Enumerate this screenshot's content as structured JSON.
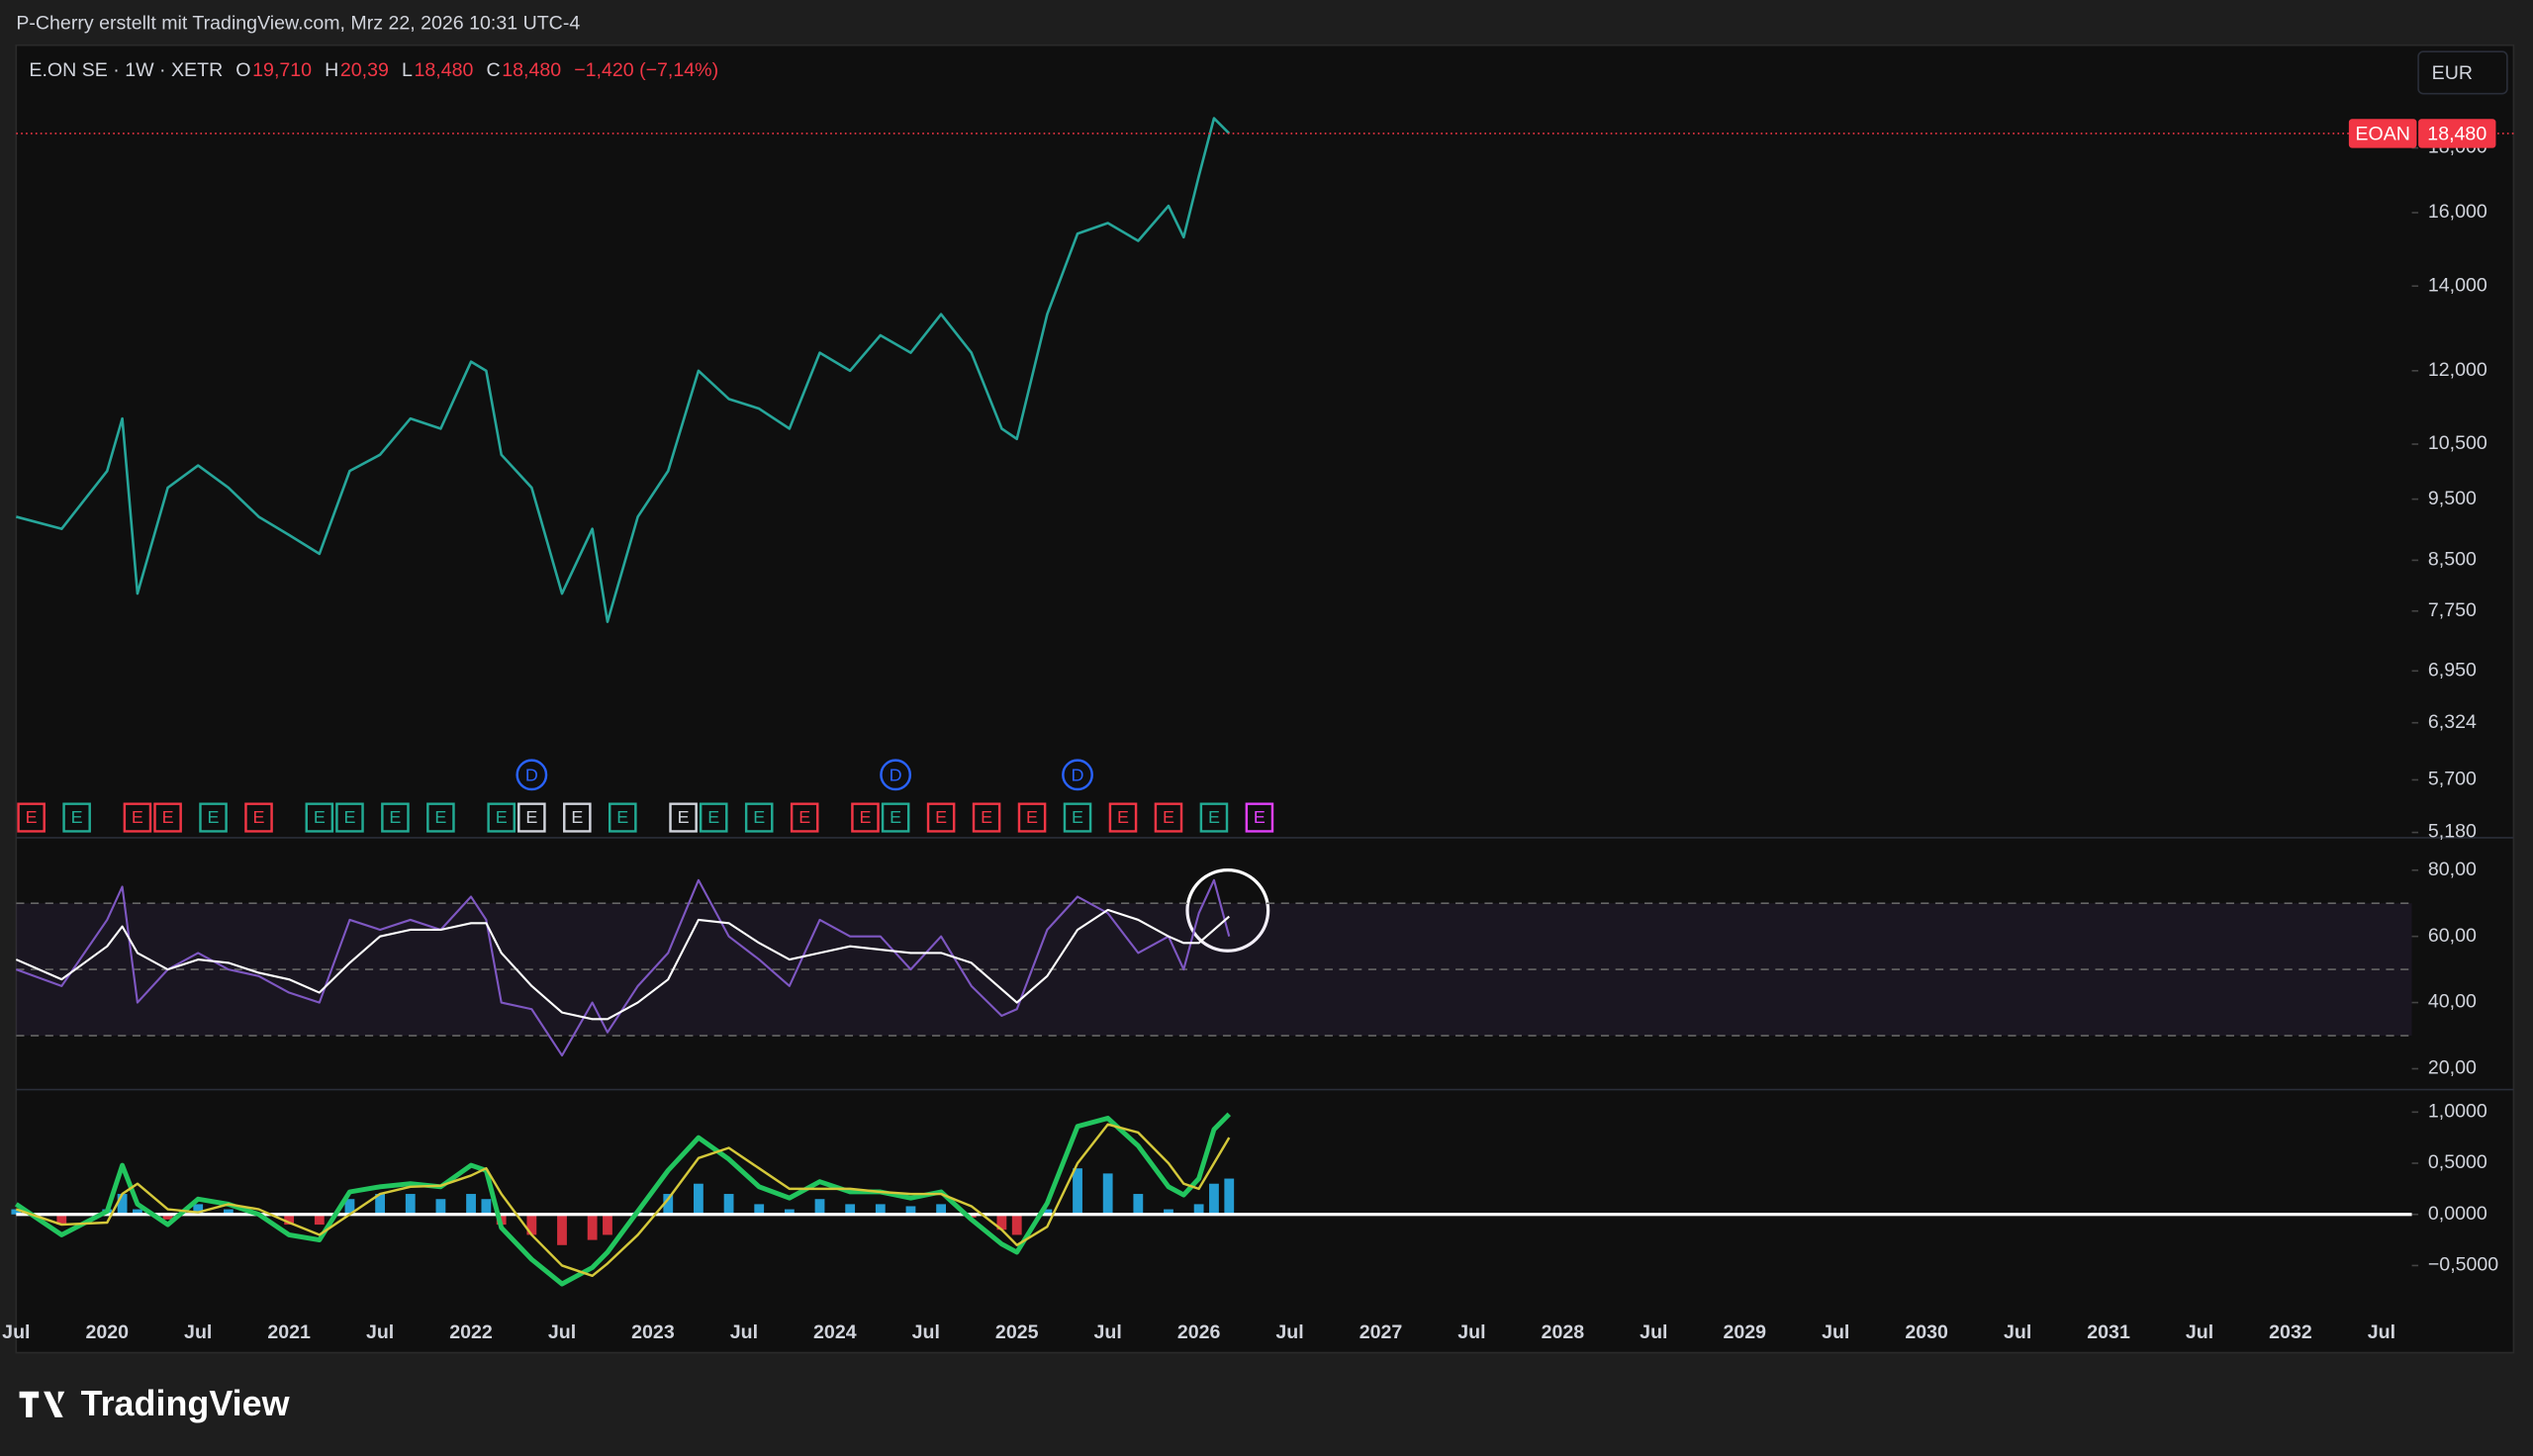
{
  "header": {
    "text": "P-Cherry erstellt mit TradingView.com, Mrz 22, 2026 10:31 UTC-4"
  },
  "footer": {
    "brand": "TradingView"
  },
  "chart_data": [
    {
      "type": "line",
      "title": "E.ON SE · 1W · XETR",
      "legend_items": [
        {
          "key": "O",
          "value": "19,710"
        },
        {
          "key": "H",
          "value": "20,39"
        },
        {
          "key": "L",
          "value": "18,480"
        },
        {
          "key": "C",
          "value": "18,480"
        }
      ],
      "change": "−1,420 (−7,14%)",
      "currency": "EUR",
      "log_scale": true,
      "grid": false,
      "xlim": [
        "2019-07",
        "2032-09"
      ],
      "x": [
        "2019-07",
        "2019-10",
        "2020-01",
        "2020-02",
        "2020-03",
        "2020-05",
        "2020-07",
        "2020-09",
        "2020-11",
        "2021-01",
        "2021-03",
        "2021-05",
        "2021-07",
        "2021-09",
        "2021-11",
        "2022-01",
        "2022-02",
        "2022-03",
        "2022-05",
        "2022-07",
        "2022-09",
        "2022-10",
        "2022-12",
        "2023-02",
        "2023-04",
        "2023-06",
        "2023-08",
        "2023-10",
        "2023-12",
        "2024-02",
        "2024-04",
        "2024-06",
        "2024-08",
        "2024-10",
        "2024-12",
        "2025-01",
        "2025-03",
        "2025-05",
        "2025-07",
        "2025-09",
        "2025-11",
        "2025-12",
        "2026-01",
        "2026-02",
        "2026-03"
      ],
      "values": [
        9.2,
        9.0,
        10.0,
        11.0,
        8.0,
        9.7,
        10.1,
        9.7,
        9.2,
        8.9,
        8.6,
        10.0,
        10.3,
        11.0,
        10.8,
        12.2,
        12.0,
        10.3,
        9.7,
        8.0,
        9.0,
        7.6,
        9.2,
        10.0,
        12.0,
        11.4,
        11.2,
        10.8,
        12.4,
        12.0,
        12.8,
        12.4,
        13.3,
        12.4,
        10.8,
        10.6,
        13.3,
        15.4,
        15.7,
        15.2,
        16.2,
        15.3,
        17.1,
        19.0,
        18.48
      ],
      "color": "#26a69a",
      "ylim": [
        5.13,
        21.7
      ],
      "yticks": [
        {
          "value": 5.18,
          "label": "5,180"
        },
        {
          "value": 5.7,
          "label": "5,700"
        },
        {
          "value": 6.324,
          "label": "6,324"
        },
        {
          "value": 6.95,
          "label": "6,950"
        },
        {
          "value": 7.75,
          "label": "7,750"
        },
        {
          "value": 8.5,
          "label": "8,500"
        },
        {
          "value": 9.5,
          "label": "9,500"
        },
        {
          "value": 10.5,
          "label": "10,500"
        },
        {
          "value": 12,
          "label": "12,000"
        },
        {
          "value": 14,
          "label": "14,000"
        },
        {
          "value": 16,
          "label": "16,000"
        },
        {
          "value": 18,
          "label": "18,000"
        }
      ],
      "last_price": {
        "value": 18.48,
        "label": "18,480",
        "symbol": "EOAN",
        "color": "#f23645"
      },
      "events": [
        {
          "x": "2019-08",
          "label": "E",
          "color": "#f23645"
        },
        {
          "x": "2019-11",
          "label": "E",
          "color": "#22ab94"
        },
        {
          "x": "2020-03",
          "label": "E",
          "color": "#f23645"
        },
        {
          "x": "2020-05",
          "label": "E",
          "color": "#f23645"
        },
        {
          "x": "2020-08",
          "label": "E",
          "color": "#22ab94"
        },
        {
          "x": "2020-11",
          "label": "E",
          "color": "#f23645"
        },
        {
          "x": "2021-03",
          "label": "E",
          "color": "#22ab94"
        },
        {
          "x": "2021-05",
          "label": "E",
          "color": "#22ab94"
        },
        {
          "x": "2021-08",
          "label": "E",
          "color": "#22ab94"
        },
        {
          "x": "2021-11",
          "label": "E",
          "color": "#22ab94"
        },
        {
          "x": "2022-03",
          "label": "E",
          "color": "#22ab94"
        },
        {
          "x": "2022-05",
          "label": "E",
          "color": "#d1d4dc"
        },
        {
          "x": "2022-08",
          "label": "E",
          "color": "#d1d4dc"
        },
        {
          "x": "2022-11",
          "label": "E",
          "color": "#22ab94"
        },
        {
          "x": "2023-03",
          "label": "E",
          "color": "#d1d4dc"
        },
        {
          "x": "2023-05",
          "label": "E",
          "color": "#22ab94"
        },
        {
          "x": "2023-08",
          "label": "E",
          "color": "#22ab94"
        },
        {
          "x": "2023-11",
          "label": "E",
          "color": "#f23645"
        },
        {
          "x": "2024-03",
          "label": "E",
          "color": "#f23645"
        },
        {
          "x": "2024-05",
          "label": "E",
          "color": "#22ab94"
        },
        {
          "x": "2024-08",
          "label": "E",
          "color": "#f23645"
        },
        {
          "x": "2024-11",
          "label": "E",
          "color": "#f23645"
        },
        {
          "x": "2025-02",
          "label": "E",
          "color": "#f23645"
        },
        {
          "x": "2025-05",
          "label": "E",
          "color": "#22ab94"
        },
        {
          "x": "2025-08",
          "label": "E",
          "color": "#f23645"
        },
        {
          "x": "2025-11",
          "label": "E",
          "color": "#f23645"
        },
        {
          "x": "2026-02",
          "label": "E",
          "color": "#22ab94"
        },
        {
          "x": "2026-05",
          "label": "E",
          "color": "#e040fb"
        },
        {
          "x": "2022-05",
          "label": "D",
          "color": "#2962ff"
        },
        {
          "x": "2024-05",
          "label": "D",
          "color": "#2962ff"
        },
        {
          "x": "2025-05",
          "label": "D",
          "color": "#2962ff"
        }
      ]
    },
    {
      "type": "line",
      "xlim": [
        "2019-07",
        "2032-09"
      ],
      "x": [
        "2019-07",
        "2019-10",
        "2020-01",
        "2020-02",
        "2020-03",
        "2020-05",
        "2020-07",
        "2020-09",
        "2020-11",
        "2021-01",
        "2021-03",
        "2021-05",
        "2021-07",
        "2021-09",
        "2021-11",
        "2022-01",
        "2022-02",
        "2022-03",
        "2022-05",
        "2022-07",
        "2022-09",
        "2022-10",
        "2022-12",
        "2023-02",
        "2023-04",
        "2023-06",
        "2023-08",
        "2023-10",
        "2023-12",
        "2024-02",
        "2024-04",
        "2024-06",
        "2024-08",
        "2024-10",
        "2024-12",
        "2025-01",
        "2025-03",
        "2025-05",
        "2025-07",
        "2025-09",
        "2025-11",
        "2025-12",
        "2026-01",
        "2026-02",
        "2026-03"
      ],
      "series": [
        {
          "color": "#7e57c2",
          "values": [
            50,
            45,
            65,
            75,
            40,
            50,
            55,
            50,
            48,
            43,
            40,
            65,
            62,
            65,
            62,
            72,
            65,
            40,
            38,
            24,
            40,
            31,
            45,
            55,
            77,
            60,
            53,
            45,
            65,
            60,
            60,
            50,
            60,
            45,
            36,
            38,
            62,
            72,
            67,
            55,
            60,
            50,
            67,
            77,
            60
          ]
        },
        {
          "color": "#ffffff",
          "values": [
            53,
            47,
            57,
            63,
            55,
            50,
            53,
            52,
            49,
            47,
            43,
            52,
            60,
            62,
            62,
            64,
            64,
            55,
            45,
            37,
            35,
            35,
            40,
            47,
            65,
            64,
            58,
            53,
            55,
            57,
            56,
            55,
            55,
            52,
            44,
            40,
            48,
            62,
            68,
            65,
            60,
            58,
            58,
            62,
            66
          ]
        }
      ],
      "ylim": [
        13.7,
        89.8
      ],
      "yticks": [
        {
          "value": 20,
          "label": "20,00"
        },
        {
          "value": 40,
          "label": "40,00"
        },
        {
          "value": 60,
          "label": "60,00"
        },
        {
          "value": 80,
          "label": "80,00"
        }
      ],
      "bands": [
        70,
        50,
        30
      ],
      "band_fill": "rgba(126,87,194,0.10)"
    },
    {
      "type": "macd",
      "xlim": [
        "2019-07",
        "2032-09"
      ],
      "x": [
        "2019-07",
        "2019-10",
        "2020-01",
        "2020-02",
        "2020-03",
        "2020-05",
        "2020-07",
        "2020-09",
        "2020-11",
        "2021-01",
        "2021-03",
        "2021-05",
        "2021-07",
        "2021-09",
        "2021-11",
        "2022-01",
        "2022-02",
        "2022-03",
        "2022-05",
        "2022-07",
        "2022-09",
        "2022-10",
        "2022-12",
        "2023-02",
        "2023-04",
        "2023-06",
        "2023-08",
        "2023-10",
        "2023-12",
        "2024-02",
        "2024-04",
        "2024-06",
        "2024-08",
        "2024-10",
        "2024-12",
        "2025-01",
        "2025-03",
        "2025-05",
        "2025-07",
        "2025-09",
        "2025-11",
        "2025-12",
        "2026-01",
        "2026-02",
        "2026-03"
      ],
      "series": [
        {
          "color": "#22c55e",
          "values": [
            0.1,
            -0.2,
            0.03,
            0.48,
            0.1,
            -0.1,
            0.15,
            0.1,
            0,
            -0.2,
            -0.25,
            0.22,
            0.27,
            0.3,
            0.27,
            0.48,
            0.43,
            -0.13,
            -0.44,
            -0.68,
            -0.52,
            -0.37,
            0.03,
            0.43,
            0.75,
            0.54,
            0.27,
            0.16,
            0.32,
            0.22,
            0.22,
            0.16,
            0.22,
            -0.05,
            -0.29,
            -0.37,
            0.11,
            0.86,
            0.94,
            0.67,
            0.27,
            0.19,
            0.35,
            0.83,
            0.98
          ]
        },
        {
          "color": "#d4c83a",
          "values": [
            0.05,
            -0.1,
            -0.08,
            0.2,
            0.3,
            0.05,
            0.02,
            0.1,
            0.05,
            -0.08,
            -0.2,
            0,
            0.2,
            0.27,
            0.28,
            0.38,
            0.45,
            0.2,
            -0.2,
            -0.5,
            -0.6,
            -0.48,
            -0.2,
            0.15,
            0.55,
            0.65,
            0.45,
            0.25,
            0.25,
            0.25,
            0.22,
            0.2,
            0.2,
            0.08,
            -0.15,
            -0.3,
            -0.12,
            0.5,
            0.88,
            0.8,
            0.5,
            0.3,
            0.25,
            0.5,
            0.75
          ]
        }
      ],
      "histogram": {
        "values": [
          0.05,
          -0.1,
          0.05,
          0.2,
          0.05,
          -0.05,
          0.1,
          0.05,
          0,
          -0.1,
          -0.1,
          0.15,
          0.2,
          0.2,
          0.15,
          0.2,
          0.15,
          -0.1,
          -0.2,
          -0.3,
          -0.25,
          -0.2,
          0.02,
          0.2,
          0.3,
          0.2,
          0.1,
          0.05,
          0.15,
          0.1,
          0.1,
          0.08,
          0.1,
          -0.03,
          -0.15,
          -0.2,
          0.05,
          0.45,
          0.4,
          0.2,
          0.05,
          0,
          0.1,
          0.3,
          0.35
        ],
        "pos_color": "#29b6f6",
        "neg_color": "#f23645"
      },
      "zero_line_color": "#ffffff",
      "ylim": [
        -0.91,
        1.22
      ],
      "yticks": [
        {
          "value": 1,
          "label": "1,0000"
        },
        {
          "value": 0.5,
          "label": "0,5000"
        },
        {
          "value": 0,
          "label": "0,0000"
        },
        {
          "value": -0.5,
          "label": "−0,5000"
        }
      ],
      "xticks": [
        {
          "value": "2019-07",
          "label": "Jul"
        },
        {
          "value": "2020-01",
          "label": "2020"
        },
        {
          "value": "2020-07",
          "label": "Jul"
        },
        {
          "value": "2021-01",
          "label": "2021"
        },
        {
          "value": "2021-07",
          "label": "Jul"
        },
        {
          "value": "2022-01",
          "label": "2022"
        },
        {
          "value": "2022-07",
          "label": "Jul"
        },
        {
          "value": "2023-01",
          "label": "2023"
        },
        {
          "value": "2023-07",
          "label": "Jul"
        },
        {
          "value": "2024-01",
          "label": "2024"
        },
        {
          "value": "2024-07",
          "label": "Jul"
        },
        {
          "value": "2025-01",
          "label": "2025"
        },
        {
          "value": "2025-07",
          "label": "Jul"
        },
        {
          "value": "2026-01",
          "label": "2026"
        },
        {
          "value": "2026-07",
          "label": "Jul"
        },
        {
          "value": "2027-01",
          "label": "2027"
        },
        {
          "value": "2027-07",
          "label": "Jul"
        },
        {
          "value": "2028-01",
          "label": "2028"
        },
        {
          "value": "2028-07",
          "label": "Jul"
        },
        {
          "value": "2029-01",
          "label": "2029"
        },
        {
          "value": "2029-07",
          "label": "Jul"
        },
        {
          "value": "2030-01",
          "label": "2030"
        },
        {
          "value": "2030-07",
          "label": "Jul"
        },
        {
          "value": "2031-01",
          "label": "2031"
        },
        {
          "value": "2031-07",
          "label": "Jul"
        },
        {
          "value": "2032-01",
          "label": "2032"
        },
        {
          "value": "2032-07",
          "label": "Jul"
        }
      ]
    }
  ]
}
